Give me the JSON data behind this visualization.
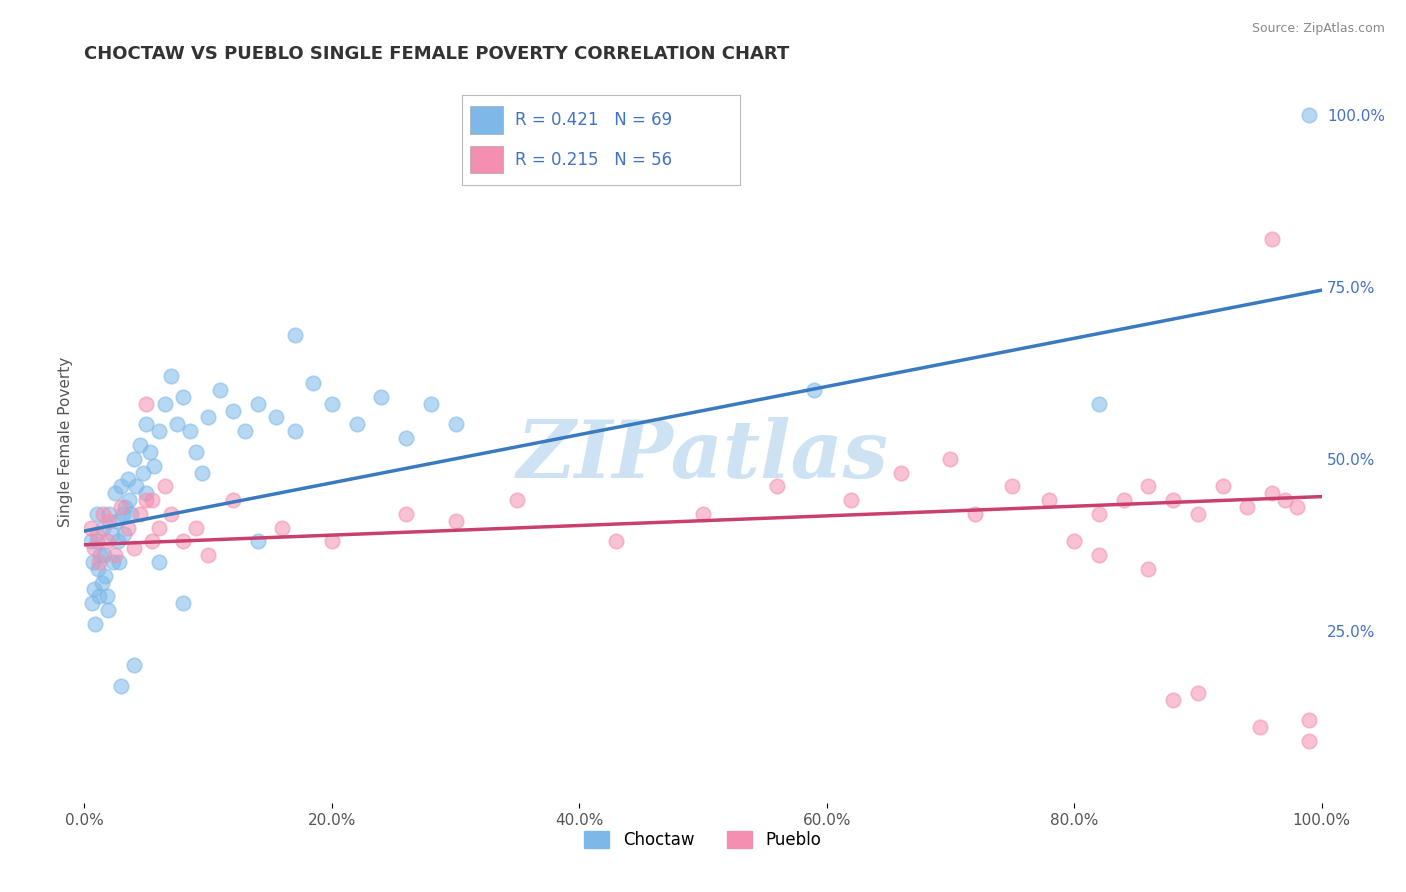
{
  "title": "CHOCTAW VS PUEBLO SINGLE FEMALE POVERTY CORRELATION CHART",
  "source": "Source: ZipAtlas.com",
  "ylabel": "Single Female Poverty",
  "xlim": [
    0.0,
    1.0
  ],
  "ylim": [
    0.0,
    1.05
  ],
  "choctaw_R": 0.421,
  "choctaw_N": 69,
  "pueblo_R": 0.215,
  "pueblo_N": 56,
  "choctaw_color": "#7db8e8",
  "pueblo_color": "#f48fb1",
  "choctaw_line_color": "#3a7abf",
  "pueblo_line_color": "#c94070",
  "watermark": "ZIPatlas",
  "watermark_color": "#c5ddf0",
  "background_color": "#ffffff",
  "grid_color": "#cccccc",
  "title_color": "#333333",
  "right_axis_label_color": "#4472c4",
  "choctaw_x": [
    0.005,
    0.006,
    0.007,
    0.008,
    0.009,
    0.01,
    0.01,
    0.011,
    0.012,
    0.013,
    0.014,
    0.015,
    0.016,
    0.017,
    0.018,
    0.019,
    0.02,
    0.022,
    0.023,
    0.025,
    0.026,
    0.027,
    0.028,
    0.03,
    0.031,
    0.032,
    0.033,
    0.035,
    0.036,
    0.038,
    0.04,
    0.042,
    0.045,
    0.047,
    0.05,
    0.053,
    0.056,
    0.06,
    0.065,
    0.07,
    0.075,
    0.08,
    0.085,
    0.09,
    0.095,
    0.1,
    0.11,
    0.12,
    0.13,
    0.14,
    0.155,
    0.17,
    0.185,
    0.2,
    0.22,
    0.24,
    0.26,
    0.28,
    0.3,
    0.17,
    0.14,
    0.08,
    0.06,
    0.05,
    0.04,
    0.03,
    0.59,
    0.82,
    0.99
  ],
  "choctaw_y": [
    0.38,
    0.29,
    0.35,
    0.31,
    0.26,
    0.42,
    0.38,
    0.34,
    0.3,
    0.36,
    0.32,
    0.4,
    0.36,
    0.33,
    0.3,
    0.28,
    0.42,
    0.39,
    0.35,
    0.45,
    0.41,
    0.38,
    0.35,
    0.46,
    0.42,
    0.39,
    0.43,
    0.47,
    0.44,
    0.42,
    0.5,
    0.46,
    0.52,
    0.48,
    0.55,
    0.51,
    0.49,
    0.54,
    0.58,
    0.62,
    0.55,
    0.59,
    0.54,
    0.51,
    0.48,
    0.56,
    0.6,
    0.57,
    0.54,
    0.58,
    0.56,
    0.54,
    0.61,
    0.58,
    0.55,
    0.59,
    0.53,
    0.58,
    0.55,
    0.68,
    0.38,
    0.29,
    0.35,
    0.45,
    0.2,
    0.17,
    0.6,
    0.58,
    1.0
  ],
  "pueblo_x": [
    0.005,
    0.008,
    0.01,
    0.012,
    0.015,
    0.018,
    0.02,
    0.025,
    0.03,
    0.035,
    0.04,
    0.045,
    0.05,
    0.055,
    0.06,
    0.07,
    0.08,
    0.09,
    0.1,
    0.05,
    0.055,
    0.065,
    0.12,
    0.16,
    0.2,
    0.26,
    0.3,
    0.35,
    0.43,
    0.5,
    0.56,
    0.62,
    0.66,
    0.7,
    0.72,
    0.75,
    0.78,
    0.8,
    0.82,
    0.84,
    0.86,
    0.88,
    0.9,
    0.92,
    0.94,
    0.96,
    0.97,
    0.98,
    0.99,
    0.99,
    0.82,
    0.86,
    0.88,
    0.9,
    0.95,
    0.96
  ],
  "pueblo_y": [
    0.4,
    0.37,
    0.39,
    0.35,
    0.42,
    0.38,
    0.41,
    0.36,
    0.43,
    0.4,
    0.37,
    0.42,
    0.44,
    0.38,
    0.4,
    0.42,
    0.38,
    0.4,
    0.36,
    0.58,
    0.44,
    0.46,
    0.44,
    0.4,
    0.38,
    0.42,
    0.41,
    0.44,
    0.38,
    0.42,
    0.46,
    0.44,
    0.48,
    0.5,
    0.42,
    0.46,
    0.44,
    0.38,
    0.42,
    0.44,
    0.46,
    0.44,
    0.42,
    0.46,
    0.43,
    0.45,
    0.44,
    0.43,
    0.12,
    0.09,
    0.36,
    0.34,
    0.15,
    0.16,
    0.11,
    0.82
  ],
  "xtick_labels": [
    "0.0%",
    "20.0%",
    "40.0%",
    "60.0%",
    "80.0%",
    "100.0%"
  ],
  "xtick_vals": [
    0.0,
    0.2,
    0.4,
    0.6,
    0.8,
    1.0
  ],
  "right_ytick_labels": [
    "25.0%",
    "50.0%",
    "75.0%",
    "100.0%"
  ],
  "right_ytick_vals": [
    0.25,
    0.5,
    0.75,
    1.0
  ],
  "choctaw_line_x0": 0.0,
  "choctaw_line_y0": 0.395,
  "choctaw_line_x1": 1.0,
  "choctaw_line_y1": 0.745,
  "pueblo_line_x0": 0.0,
  "pueblo_line_y0": 0.375,
  "pueblo_line_x1": 1.0,
  "pueblo_line_y1": 0.445
}
